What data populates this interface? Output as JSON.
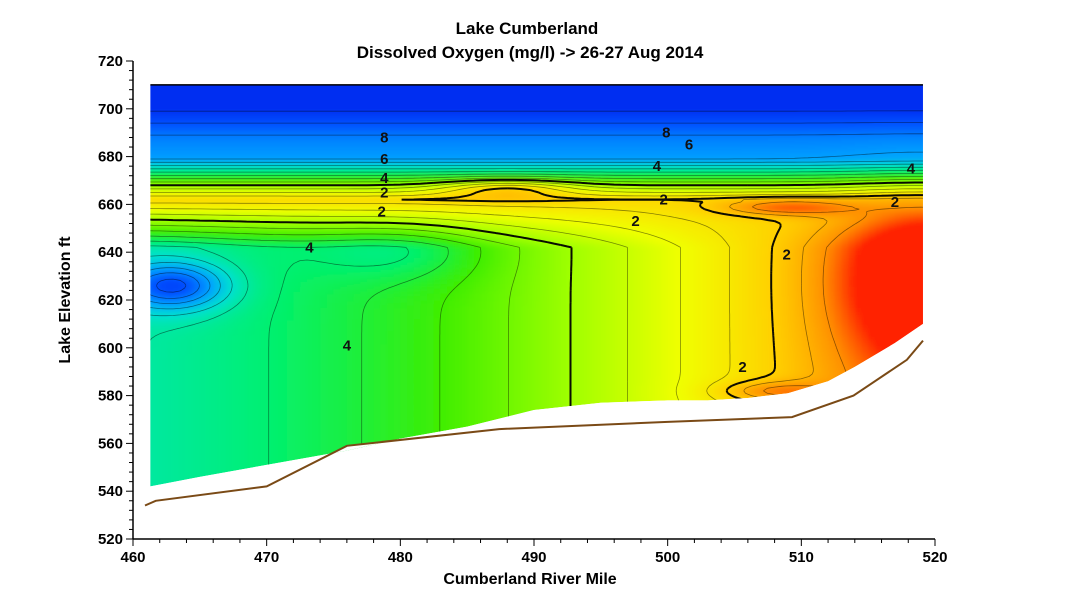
{
  "chart_data": {
    "type": "heatmap",
    "title": "Lake Cumberland",
    "subtitle": "Dissolved Oxygen (mg/l) -> 26-27 Aug 2014",
    "xlabel": "Cumberland River Mile",
    "ylabel": "Lake  Elevation  ft",
    "xlim": [
      460,
      520
    ],
    "ylim": [
      520,
      720
    ],
    "x_ticks": [
      "460",
      "470",
      "480",
      "490",
      "500",
      "510",
      "520"
    ],
    "y_ticks": [
      "520",
      "540",
      "560",
      "580",
      "600",
      "620",
      "640",
      "660",
      "680",
      "700",
      "720"
    ],
    "water_surface_elevation": 710,
    "contour_levels_labeled": [
      2,
      4,
      6,
      8
    ],
    "contour_labels": [
      {
        "text": "8",
        "x": 478.8,
        "y": 688
      },
      {
        "text": "6",
        "x": 478.8,
        "y": 679
      },
      {
        "text": "4",
        "x": 478.8,
        "y": 671
      },
      {
        "text": "2",
        "x": 478.8,
        "y": 665
      },
      {
        "text": "2",
        "x": 478.6,
        "y": 657
      },
      {
        "text": "4",
        "x": 473.2,
        "y": 642
      },
      {
        "text": "4",
        "x": 476.0,
        "y": 601
      },
      {
        "text": "8",
        "x": 499.9,
        "y": 690
      },
      {
        "text": "6",
        "x": 501.6,
        "y": 685
      },
      {
        "text": "4",
        "x": 499.2,
        "y": 676
      },
      {
        "text": "2",
        "x": 499.7,
        "y": 662
      },
      {
        "text": "2",
        "x": 497.6,
        "y": 653
      },
      {
        "text": "2",
        "x": 508.9,
        "y": 639
      },
      {
        "text": "2",
        "x": 505.6,
        "y": 592
      },
      {
        "text": "4",
        "x": 518.2,
        "y": 675
      },
      {
        "text": "2",
        "x": 517.0,
        "y": 661
      }
    ],
    "bottom_profile": [
      {
        "x": 460.9,
        "y": 534
      },
      {
        "x": 461.7,
        "y": 536
      },
      {
        "x": 470.0,
        "y": 542
      },
      {
        "x": 476.0,
        "y": 559
      },
      {
        "x": 487.4,
        "y": 566
      },
      {
        "x": 500.0,
        "y": 569
      },
      {
        "x": 509.3,
        "y": 571
      },
      {
        "x": 513.9,
        "y": 580
      },
      {
        "x": 517.9,
        "y": 595
      },
      {
        "x": 519.1,
        "y": 603
      }
    ],
    "colormap": [
      {
        "value": 0,
        "color": "#ff2000"
      },
      {
        "value": 1,
        "color": "#ff9000"
      },
      {
        "value": 2,
        "color": "#ffd000"
      },
      {
        "value": 3,
        "color": "#f0ff00"
      },
      {
        "value": 4,
        "color": "#a0ff00"
      },
      {
        "value": 5,
        "color": "#40ee00"
      },
      {
        "value": 6,
        "color": "#00f070"
      },
      {
        "value": 7,
        "color": "#00e0d0"
      },
      {
        "value": 8,
        "color": "#00a0ff"
      },
      {
        "value": 9,
        "color": "#0050ff"
      },
      {
        "value": 10,
        "color": "#0018e8"
      }
    ]
  }
}
